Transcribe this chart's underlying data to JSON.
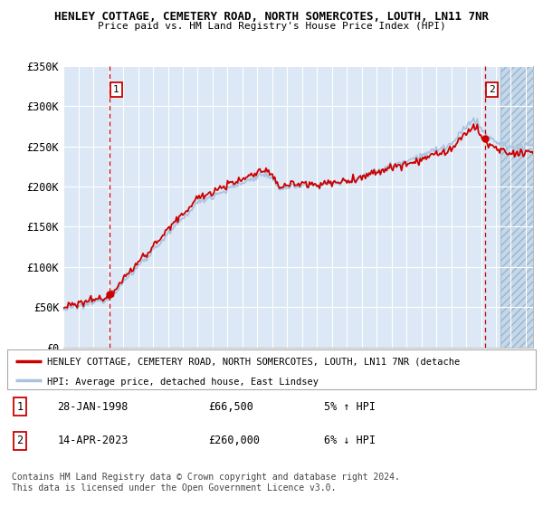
{
  "title1": "HENLEY COTTAGE, CEMETERY ROAD, NORTH SOMERCOTES, LOUTH, LN11 7NR",
  "title2": "Price paid vs. HM Land Registry's House Price Index (HPI)",
  "ylabel_ticks": [
    "£0",
    "£50K",
    "£100K",
    "£150K",
    "£200K",
    "£250K",
    "£300K",
    "£350K"
  ],
  "ylim": [
    0,
    350000
  ],
  "xlim_start": 1995.0,
  "xlim_end": 2026.5,
  "sale1_date": 1998.08,
  "sale1_price": 66500,
  "sale2_date": 2023.28,
  "sale2_price": 260000,
  "hpi_color": "#aac4df",
  "sale_line_color": "#cc0000",
  "sale_dot_color": "#cc0000",
  "vline_color": "#cc0000",
  "plot_bg": "#dce8f5",
  "grid_color": "#ffffff",
  "legend_line1": "HENLEY COTTAGE, CEMETERY ROAD, NORTH SOMERCOTES, LOUTH, LN11 7NR (detache",
  "legend_line2": "HPI: Average price, detached house, East Lindsey",
  "annotation1_date": "28-JAN-1998",
  "annotation1_price": "£66,500",
  "annotation1_hpi": "5% ↑ HPI",
  "annotation2_date": "14-APR-2023",
  "annotation2_price": "£260,000",
  "annotation2_hpi": "6% ↓ HPI",
  "footer": "Contains HM Land Registry data © Crown copyright and database right 2024.\nThis data is licensed under the Open Government Licence v3.0.",
  "future_start": 2024.33
}
